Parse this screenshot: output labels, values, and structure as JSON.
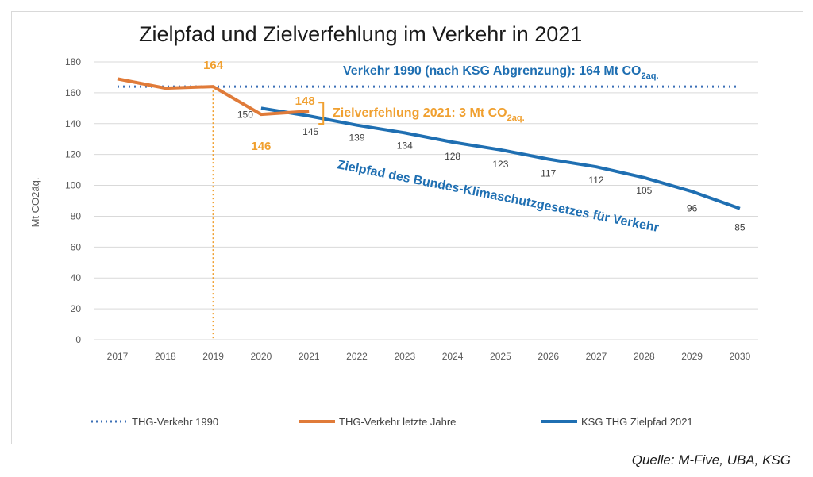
{
  "chart_data": {
    "type": "line",
    "title": "Zielpfad und Zielverfehlung im Verkehr in 2021",
    "ylabel": "Mt  CO2äq.",
    "xlabel": "",
    "ylim": [
      0,
      180
    ],
    "yticks": [
      0,
      20,
      40,
      60,
      80,
      100,
      120,
      140,
      160,
      180
    ],
    "x": [
      "2017",
      "2018",
      "2019",
      "2020",
      "2021",
      "2022",
      "2023",
      "2024",
      "2025",
      "2026",
      "2027",
      "2028",
      "2029",
      "2030"
    ],
    "grid": true,
    "legend_position": "bottom",
    "series": [
      {
        "name": "THG-Verkehr 1990",
        "style": "dotted",
        "color": "#3b6fb6",
        "values": [
          164,
          164,
          164,
          164,
          164,
          164,
          164,
          164,
          164,
          164,
          164,
          164,
          164,
          164
        ]
      },
      {
        "name": "THG-Verkehr letzte Jahre",
        "style": "solid",
        "color": "#e07b39",
        "values": [
          169,
          163,
          164,
          146,
          148,
          null,
          null,
          null,
          null,
          null,
          null,
          null,
          null,
          null
        ]
      },
      {
        "name": "KSG THG Zielpfad 2021",
        "style": "solid",
        "color": "#1f6fb2",
        "values": [
          null,
          null,
          null,
          150,
          145,
          139,
          134,
          128,
          123,
          117,
          112,
          105,
          96,
          85
        ],
        "labels": [
          "",
          "",
          "",
          "150",
          "145",
          "139",
          "134",
          "128",
          "123",
          "117",
          "112",
          "105",
          "96",
          "85"
        ]
      }
    ],
    "annotations": {
      "value_2019": "164",
      "value_2020": "146",
      "value_2021": "148",
      "ref_line_prefix": "Verkehr 1990 (nach KSG Abgrenzung): 164 Mt CO",
      "ref_line_sub": "2aq.",
      "gap_prefix": "Zielverfehlung  2021: 3 Mt CO",
      "gap_sub": "2aq.",
      "path_label": "Zielpfad des Bundes-Klimaschutzgesetzes  für Verkehr"
    },
    "colors": {
      "orange": "#e07b39",
      "orange_text": "#f0a030",
      "blue": "#1f6fb2",
      "dotted": "#3b6fb6",
      "grid": "#d9d9d9"
    }
  },
  "source": "Quelle: M-Five, UBA, KSG"
}
